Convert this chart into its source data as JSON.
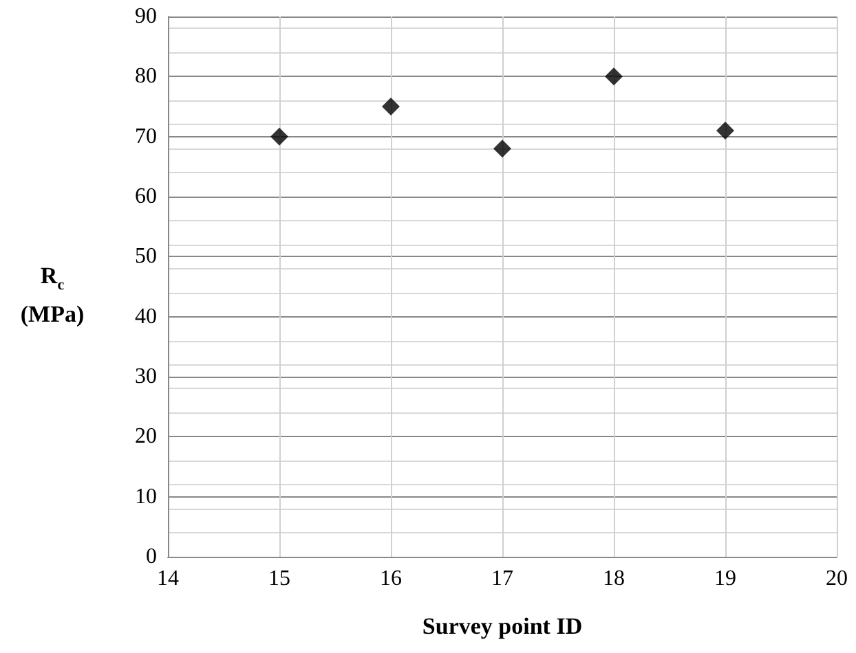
{
  "chart_data": {
    "type": "scatter",
    "xlabel": "Survey point ID",
    "ylabel": "R$_{c}$ (MPa)",
    "x": [
      15,
      16,
      17,
      18,
      19
    ],
    "values": [
      70,
      75,
      68,
      80,
      71
    ],
    "color": "#000000",
    "marker": "diamond",
    "xlim": [
      14,
      20
    ],
    "xticks": [
      14,
      15,
      16,
      17,
      18,
      19,
      20
    ],
    "ylim": [
      0,
      90
    ],
    "yticks": [
      0,
      10,
      20,
      30,
      40,
      50,
      60,
      70,
      80,
      90
    ],
    "grid": true
  }
}
